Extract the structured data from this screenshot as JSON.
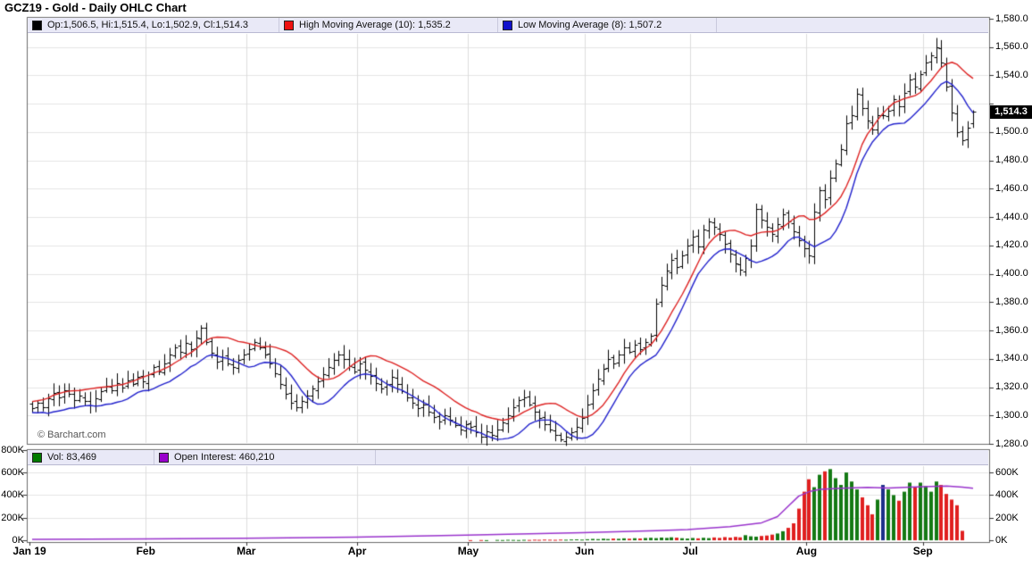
{
  "title": "GCZ19 - Gold - Daily OHLC Chart",
  "watermark": "© Barchart.com",
  "price_panel": {
    "legend": [
      {
        "swatch": "#000000",
        "label": "Op:1,506.5, Hi:1,515.4, Lo:1,502.9, Cl:1,514.3"
      },
      {
        "swatch": "#ee1111",
        "label": "High Moving Average (10): 1,535.2"
      },
      {
        "swatch": "#1111cc",
        "label": "Low Moving Average (8): 1,507.2"
      }
    ],
    "last_price_label": "1,514.3",
    "y_ticks": [
      {
        "value": 1580,
        "label": "1,580.0"
      },
      {
        "value": 1560,
        "label": "1,560.0"
      },
      {
        "value": 1540,
        "label": "1,540.0"
      },
      {
        "value": 1520,
        "label": ""
      },
      {
        "value": 1500,
        "label": "1,500.0"
      },
      {
        "value": 1480,
        "label": "1,480.0"
      },
      {
        "value": 1460,
        "label": "1,460.0"
      },
      {
        "value": 1440,
        "label": "1,440.0"
      },
      {
        "value": 1420,
        "label": "1,420.0"
      },
      {
        "value": 1400,
        "label": "1,400.0"
      },
      {
        "value": 1380,
        "label": "1,380.0"
      },
      {
        "value": 1360,
        "label": "1,360.0"
      },
      {
        "value": 1340,
        "label": "1,340.0"
      },
      {
        "value": 1320,
        "label": "1,320.0"
      },
      {
        "value": 1300,
        "label": "1,300.0"
      },
      {
        "value": 1280,
        "label": "1,280.0"
      }
    ]
  },
  "volume_panel": {
    "legend": [
      {
        "swatch": "#007a00",
        "label": "Vol: 83,469"
      },
      {
        "swatch": "#9900cc",
        "label": "Open Interest: 460,210"
      }
    ],
    "left_ticks": [
      {
        "v": 800,
        "label": "800K"
      },
      {
        "v": 600,
        "label": "600K"
      },
      {
        "v": 400,
        "label": "400K"
      },
      {
        "v": 200,
        "label": "200K"
      },
      {
        "v": 0,
        "label": "0K"
      }
    ],
    "right_ticks": [
      {
        "v": 600,
        "label": "600K"
      },
      {
        "v": 400,
        "label": "400K"
      },
      {
        "v": 200,
        "label": "200K"
      },
      {
        "v": 0,
        "label": "0K"
      }
    ]
  },
  "x_axis": {
    "months": [
      {
        "label": "Jan 19",
        "index": 0
      },
      {
        "label": "Feb",
        "index": 22
      },
      {
        "label": "Mar",
        "index": 41
      },
      {
        "label": "Apr",
        "index": 62
      },
      {
        "label": "May",
        "index": 83
      },
      {
        "label": "Jun",
        "index": 105
      },
      {
        "label": "Jul",
        "index": 125
      },
      {
        "label": "Aug",
        "index": 147
      },
      {
        "label": "Sep",
        "index": 169
      }
    ]
  },
  "chart_data": {
    "type": "ohlc+volume",
    "symbol": "GCZ19",
    "title": "GCZ19 - Gold - Daily OHLC Chart",
    "ylim": [
      1280,
      1580
    ],
    "volume_ylim_k": [
      0,
      800
    ],
    "last_bar": {
      "open": 1506.5,
      "high": 1515.4,
      "low": 1502.9,
      "close": 1514.3
    },
    "final_volume": 83469,
    "final_open_interest": 460210,
    "overlays": [
      {
        "name": "High Moving Average",
        "period": 10,
        "source": "high",
        "last_value": 1535.2,
        "color": "#dd2222"
      },
      {
        "name": "Low Moving Average",
        "period": 8,
        "source": "low",
        "last_value": 1507.2,
        "color": "#2222cc"
      }
    ],
    "month_start_indices": [
      0,
      22,
      41,
      62,
      83,
      105,
      125,
      147,
      169
    ],
    "closes": [
      1305,
      1309,
      1306,
      1312,
      1316,
      1313,
      1318,
      1315,
      1311,
      1314,
      1310,
      1307,
      1312,
      1317,
      1321,
      1318,
      1323,
      1320,
      1325,
      1322,
      1327,
      1324,
      1329,
      1334,
      1331,
      1337,
      1343,
      1348,
      1345,
      1351,
      1347,
      1355,
      1362,
      1352,
      1344,
      1338,
      1341,
      1337,
      1334,
      1339,
      1343,
      1347,
      1352,
      1348,
      1343,
      1337,
      1330,
      1322,
      1315,
      1309,
      1306,
      1310,
      1314,
      1319,
      1324,
      1329,
      1334,
      1339,
      1343,
      1340,
      1335,
      1331,
      1337,
      1332,
      1328,
      1323,
      1319,
      1322,
      1327,
      1322,
      1317,
      1313,
      1309,
      1305,
      1308,
      1303,
      1299,
      1296,
      1300,
      1297,
      1293,
      1290,
      1294,
      1292,
      1288,
      1285,
      1289,
      1286,
      1290,
      1295,
      1300,
      1306,
      1311,
      1313,
      1308,
      1303,
      1298,
      1294,
      1290,
      1286,
      1283,
      1285,
      1288,
      1292,
      1298,
      1308,
      1318,
      1326,
      1333,
      1340,
      1337,
      1343,
      1348,
      1345,
      1350,
      1347,
      1352,
      1356,
      1379,
      1392,
      1402,
      1410,
      1405,
      1413,
      1420,
      1426,
      1419,
      1431,
      1437,
      1433,
      1428,
      1421,
      1414,
      1407,
      1403,
      1411,
      1420,
      1446,
      1438,
      1433,
      1428,
      1435,
      1442,
      1437,
      1430,
      1424,
      1418,
      1413,
      1444,
      1459,
      1453,
      1468,
      1478,
      1488,
      1506,
      1512,
      1527,
      1517,
      1508,
      1502,
      1512,
      1512,
      1515,
      1523,
      1518,
      1528,
      1537,
      1532,
      1541,
      1549,
      1554,
      1560,
      1549,
      1532,
      1514,
      1500,
      1494,
      1503,
      1514.3
    ],
    "volumes_k": [
      0,
      0,
      0,
      0,
      0,
      0,
      0,
      0,
      0,
      0,
      0,
      0,
      0,
      0,
      0,
      0,
      0,
      0,
      0,
      0,
      0,
      0,
      0,
      0,
      0,
      0,
      0,
      0,
      0,
      0,
      0,
      0,
      0,
      0,
      0,
      0,
      0,
      0,
      0,
      0,
      0,
      0,
      0,
      0,
      0,
      0,
      0,
      0,
      0,
      0,
      0,
      0,
      0,
      0,
      0,
      0,
      0,
      0,
      0,
      0,
      0,
      0,
      0,
      0,
      0,
      0,
      0,
      0,
      0,
      0,
      0,
      0,
      0,
      0,
      0,
      0,
      0,
      0,
      0,
      0,
      0,
      0,
      0,
      1,
      0,
      2,
      1,
      0,
      3,
      2,
      4,
      3,
      2,
      4,
      3,
      5,
      4,
      6,
      5,
      4,
      6,
      5,
      7,
      8,
      6,
      9,
      12,
      10,
      14,
      11,
      15,
      13,
      17,
      14,
      18,
      16,
      20,
      22,
      19,
      24,
      21,
      26,
      23,
      18,
      15,
      20,
      17,
      22,
      19,
      25,
      21,
      28,
      24,
      30,
      26,
      45,
      35,
      32,
      38,
      42,
      50,
      60,
      80,
      110,
      150,
      280,
      430,
      540,
      470,
      580,
      610,
      630,
      550,
      490,
      600,
      520,
      450,
      380,
      310,
      230,
      360,
      490,
      450,
      400,
      350,
      430,
      510,
      470,
      510,
      480,
      430,
      520,
      490,
      410,
      360,
      310,
      83.469
    ],
    "open_interest_k_anchors": [
      [
        0,
        8
      ],
      [
        21,
        12
      ],
      [
        40,
        18
      ],
      [
        61,
        28
      ],
      [
        82,
        45
      ],
      [
        104,
        68
      ],
      [
        118,
        85
      ],
      [
        124,
        95
      ],
      [
        132,
        120
      ],
      [
        138,
        155
      ],
      [
        141,
        210
      ],
      [
        143,
        300
      ],
      [
        145,
        390
      ],
      [
        147,
        430
      ],
      [
        149,
        450
      ],
      [
        153,
        460
      ],
      [
        158,
        468
      ],
      [
        162,
        463
      ],
      [
        166,
        470
      ],
      [
        170,
        476
      ],
      [
        173,
        480
      ],
      [
        176,
        470
      ],
      [
        178,
        460.21
      ]
    ]
  },
  "colors": {
    "bar": "#000000",
    "ma_high": "#dd2222",
    "ma_low": "#2222cc",
    "volume_up": "#147a14",
    "volume_down": "#e02020",
    "volume_unchanged": "#1b2f8a",
    "open_interest": "#9933cc",
    "grid": "#e4e4e4",
    "frame": "#6b6b6b",
    "tick": "#333333",
    "legend_bg": "#e9e9f7"
  }
}
